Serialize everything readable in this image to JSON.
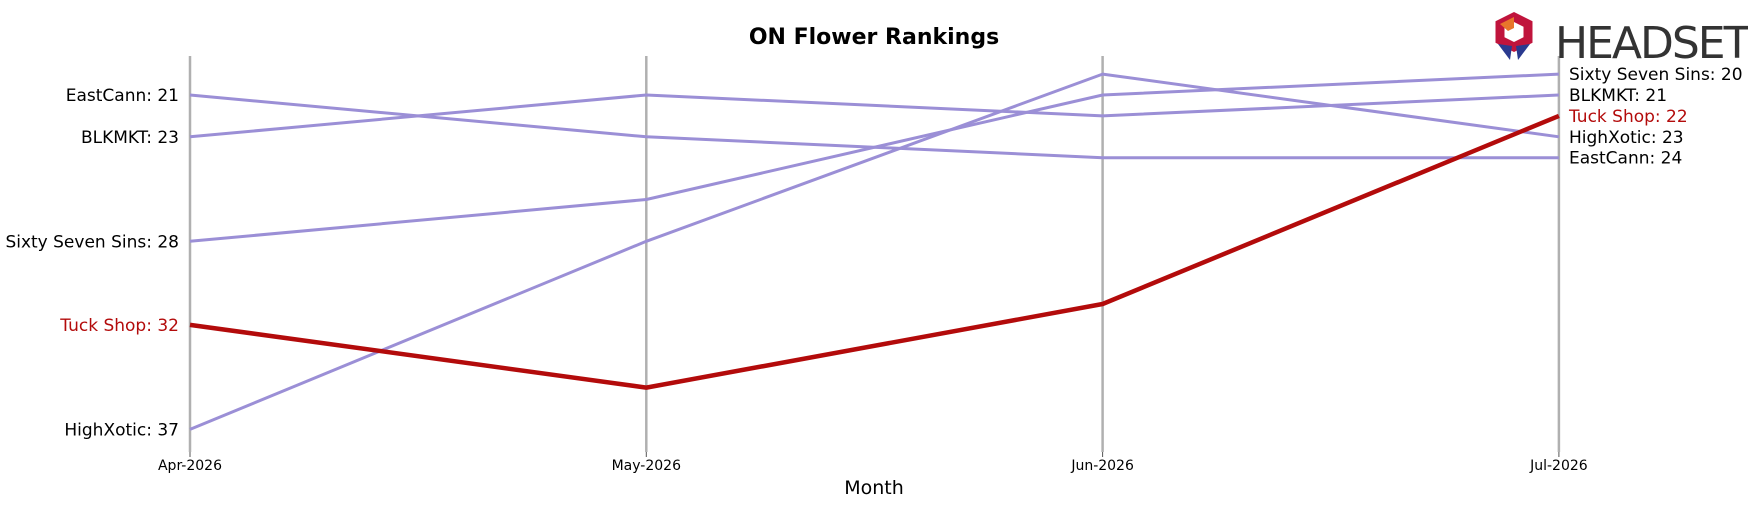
{
  "chart_data": {
    "type": "line",
    "title": "ON Flower Rankings",
    "xlabel": "Month",
    "ylabel": "",
    "categories": [
      "Apr-2026",
      "May-2026",
      "Jun-2026",
      "Jul-2026"
    ],
    "y_axis": "rank, inverted (lower rank plotted higher)",
    "ylim": [
      19,
      38
    ],
    "grid": "vertical lines at each month",
    "highlight_series": "Tuck Shop",
    "colors": {
      "default": "#9b8fd6",
      "highlight": "#b30b0b",
      "gridline": "#b0b0b0"
    },
    "series": [
      {
        "name": "EastCann",
        "values": [
          21,
          23,
          24,
          24
        ]
      },
      {
        "name": "BLKMKT",
        "values": [
          23,
          21,
          22,
          21
        ]
      },
      {
        "name": "Sixty Seven Sins",
        "values": [
          28,
          26,
          21,
          20
        ]
      },
      {
        "name": "Tuck Shop",
        "values": [
          32,
          35,
          31,
          22
        ]
      },
      {
        "name": "HighXotic",
        "values": [
          37,
          28,
          20,
          23
        ]
      }
    ],
    "start_labels": [
      {
        "text": "EastCann: 21",
        "series": "EastCann"
      },
      {
        "text": "BLKMKT: 23",
        "series": "BLKMKT"
      },
      {
        "text": "Sixty Seven Sins: 28",
        "series": "Sixty Seven Sins"
      },
      {
        "text": "Tuck Shop: 32",
        "series": "Tuck Shop"
      },
      {
        "text": "HighXotic: 37",
        "series": "HighXotic"
      }
    ],
    "end_labels": [
      {
        "text": "Sixty Seven Sins: 20",
        "series": "Sixty Seven Sins"
      },
      {
        "text": "BLKMKT: 21",
        "series": "BLKMKT"
      },
      {
        "text": "Tuck Shop: 22",
        "series": "Tuck Shop"
      },
      {
        "text": "HighXotic: 23",
        "series": "HighXotic"
      },
      {
        "text": "EastCann: 24",
        "series": "EastCann"
      }
    ]
  },
  "logo": {
    "text": "HEADSET",
    "icon": "headset-logo-icon"
  }
}
